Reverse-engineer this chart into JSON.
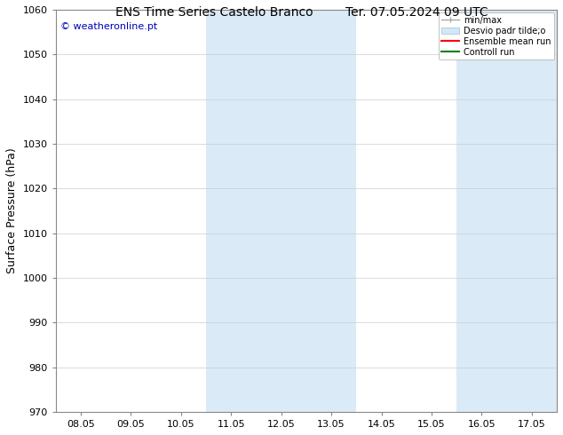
{
  "title_left": "ENS Time Series Castelo Branco",
  "title_right": "Ter. 07.05.2024 09 UTC",
  "ylabel": "Surface Pressure (hPa)",
  "ylim": [
    970,
    1060
  ],
  "yticks": [
    970,
    980,
    990,
    1000,
    1010,
    1020,
    1030,
    1040,
    1050,
    1060
  ],
  "xtick_labels": [
    "08.05",
    "09.05",
    "10.05",
    "11.05",
    "12.05",
    "13.05",
    "14.05",
    "15.05",
    "16.05",
    "17.05"
  ],
  "num_xticks": 10,
  "shaded_regions": [
    {
      "xmin": 3,
      "xmax": 5
    },
    {
      "xmin": 8,
      "xmax": 9
    }
  ],
  "shaded_color": "#daeaf7",
  "shaded_edge_color": "#b8d4ec",
  "watermark_text": "© weatheronline.pt",
  "watermark_color": "#0000bb",
  "legend_label_minmax": "min/max",
  "legend_label_desvio": "Desvio padr tilde;o",
  "legend_label_ensemble": "Ensemble mean run",
  "legend_label_control": "Controll run",
  "legend_color_minmax": "#aaaaaa",
  "legend_color_desvio": "#d0e8f8",
  "legend_color_ensemble": "#ff0000",
  "legend_color_control": "#008000",
  "background_color": "#ffffff",
  "spine_color": "#888888",
  "tick_label_fontsize": 8,
  "axis_label_fontsize": 9,
  "title_fontsize": 10,
  "watermark_fontsize": 8
}
